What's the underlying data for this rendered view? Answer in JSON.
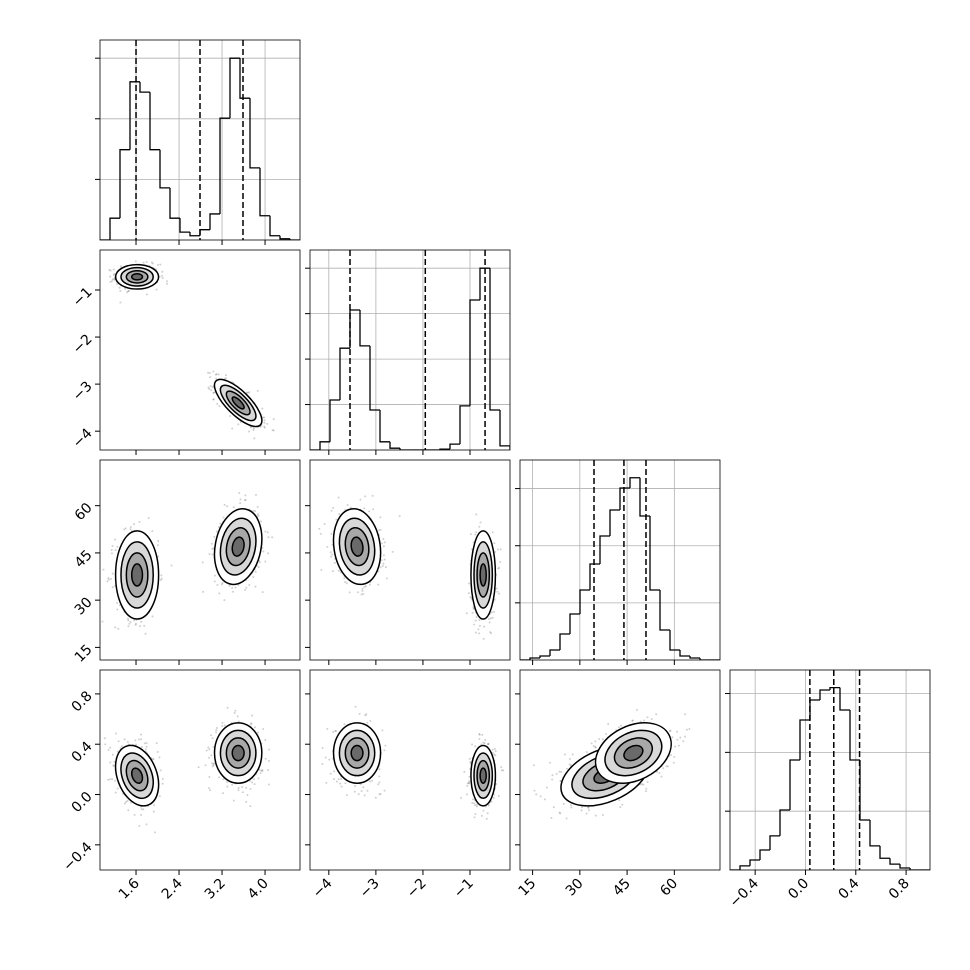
{
  "chart_data": {
    "type": "corner",
    "grid": true,
    "params": [
      {
        "range": [
          0.93,
          4.65
        ],
        "ticks": [
          1.6,
          2.4,
          3.2,
          {
            "value": 4,
            "label": "4.0"
          }
        ]
      },
      {
        "range": [
          -4.4,
          -0.15
        ],
        "ticks": [
          {
            "value": -4,
            "label": "−4"
          },
          {
            "value": -3,
            "label": "−3"
          },
          {
            "value": -2,
            "label": "−2"
          },
          {
            "value": -1,
            "label": "−1"
          }
        ]
      },
      {
        "range": [
          11,
          74.5
        ],
        "ticks": [
          15,
          30,
          45,
          60
        ]
      },
      {
        "range": [
          -0.6,
          0.99
        ],
        "ticks": [
          {
            "value": -0.4,
            "label": "−0.4"
          },
          {
            "value": 0,
            "label": "0.0"
          },
          0.4,
          0.8
        ]
      }
    ],
    "histograms": [
      {
        "bins": [
          0.93,
          1.116,
          1.302,
          1.488,
          1.674,
          1.86,
          2.046,
          2.232,
          2.418,
          2.604,
          2.79,
          2.976,
          3.162,
          3.348,
          3.534,
          3.72,
          3.906,
          4.092,
          4.278,
          4.464,
          4.65
        ],
        "counts": [
          0,
          360,
          1490,
          2610,
          2440,
          1490,
          860,
          360,
          130,
          70,
          170,
          430,
          2010,
          3000,
          2340,
          1190,
          400,
          70,
          20,
          0
        ],
        "ylim": [
          0,
          3300
        ],
        "yticks": [
          1000,
          2000,
          3000
        ],
        "quantiles": [
          1.6,
          2.79,
          3.59
        ]
      },
      {
        "bins": [
          -4.4,
          -4.1875,
          -3.975,
          -3.7625,
          -3.55,
          -3.3375,
          -3.125,
          -2.9125,
          -2.7,
          -2.4875,
          -2.275,
          -2.0625,
          -1.85,
          -1.6375,
          -1.425,
          -1.2125,
          -1.0,
          -0.7875,
          -0.575,
          -0.3625,
          -0.15
        ],
        "counts": [
          0,
          180,
          1100,
          2240,
          3080,
          2290,
          880,
          180,
          40,
          0,
          0,
          0,
          0,
          20,
          130,
          970,
          3300,
          4000,
          880,
          90
        ],
        "ylim": [
          0,
          4400
        ],
        "yticks": [
          1000,
          2000,
          3000,
          4000
        ],
        "quantiles": [
          -3.55,
          -1.95,
          -0.68
        ]
      },
      {
        "bins": [
          11,
          14.175,
          17.35,
          20.525,
          23.7,
          26.875,
          30.05,
          33.225,
          36.4,
          39.575,
          42.75,
          45.925,
          49.1,
          52.275,
          55.45,
          58.625,
          61.8,
          64.975,
          68.15,
          71.325,
          74.5
        ],
        "counts": [
          0,
          35,
          70,
          175,
          455,
          805,
          1225,
          1680,
          2170,
          2625,
          3010,
          3190,
          2520,
          1225,
          525,
          175,
          70,
          35,
          0,
          0
        ],
        "ylim": [
          0,
          3500
        ],
        "yticks": [
          1000,
          2000,
          3000
        ],
        "quantiles": [
          34.5,
          44,
          51
        ]
      },
      {
        "bins": [
          -0.6,
          -0.5205,
          -0.441,
          -0.3615,
          -0.282,
          -0.2025,
          -0.123,
          -0.0435,
          0.036,
          0.1155,
          0.195,
          0.2745,
          0.354,
          0.4335,
          0.513,
          0.5925,
          0.672,
          0.7515,
          0.831,
          0.9105,
          0.99
        ],
        "counts": [
          0,
          70,
          170,
          340,
          580,
          1020,
          1870,
          2550,
          2890,
          3060,
          3100,
          2720,
          1870,
          850,
          410,
          200,
          100,
          34,
          0,
          0
        ],
        "ylim": [
          0,
          3400
        ],
        "yticks": [
          1000,
          2000,
          3000
        ],
        "quantiles": [
          0.035,
          0.225,
          0.43
        ]
      }
    ],
    "modes": [
      {
        "mean": [
          1.62,
          -0.72,
          38,
          0.15
        ],
        "sd": [
          0.2,
          0.13,
          7,
          0.12
        ],
        "corr": [
          0,
          0,
          -0.3,
          0,
          0,
          0.4
        ]
      },
      {
        "mean": [
          3.5,
          -3.4,
          47,
          0.33
        ],
        "sd": [
          0.22,
          0.25,
          6,
          0.12
        ],
        "corr": [
          -0.75,
          0.2,
          0,
          -0.15,
          0,
          0.3
        ]
      }
    ]
  }
}
